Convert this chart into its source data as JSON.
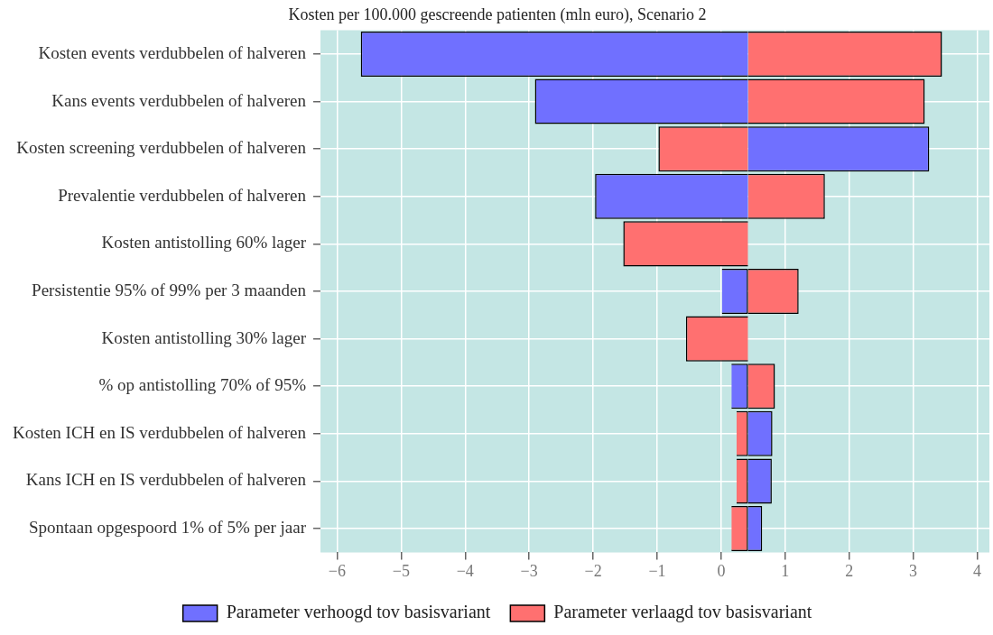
{
  "chart_data": {
    "type": "bar",
    "orientation": "horizontal",
    "title": "Kosten per 100.000 gescreende patienten (mln euro), Scenario 2",
    "categories": [
      "Kosten events verdubbelen of halveren",
      "Kans events verdubbelen of halveren",
      "Kosten screening verdubbelen of halveren",
      "Prevalentie verdubbelen of halveren",
      "Kosten antistolling 60% lager",
      "Persistentie 95% of 99% per 3 maanden",
      "Kosten antistolling 30% lager",
      "% op antistolling 70% of 95%",
      "Kosten ICH en IS verdubbelen of halveren",
      "Kans ICH en IS verdubbelen of halveren",
      "Spontaan opgespoord 1% of 5% per jaar"
    ],
    "series": [
      {
        "name": "Parameter verhoogd tov basisvariant",
        "color": "#7070ff",
        "base": [
          0.42,
          0.42,
          0.42,
          0.42,
          null,
          0.42,
          null,
          0.42,
          0.42,
          0.42,
          0.42
        ],
        "values": [
          -6.05,
          -3.33,
          2.83,
          -2.39,
          null,
          -0.42,
          null,
          -0.26,
          0.38,
          0.37,
          0.22
        ]
      },
      {
        "name": "Parameter verlaagd tov basisvariant",
        "color": "#ff7070",
        "base": [
          0.42,
          0.42,
          0.42,
          0.42,
          0.42,
          0.42,
          0.42,
          0.42,
          0.42,
          0.42,
          0.42
        ],
        "values": [
          3.03,
          2.76,
          -1.4,
          1.2,
          -1.95,
          0.79,
          -0.97,
          0.42,
          -0.18,
          -0.18,
          -0.26
        ]
      }
    ],
    "xlim": [
      -6.26,
      4.19
    ],
    "xticks": [
      -6,
      -5,
      -4,
      -3,
      -2,
      -1,
      0,
      1,
      2,
      3,
      4
    ],
    "grid": true,
    "legend": "bottom"
  }
}
